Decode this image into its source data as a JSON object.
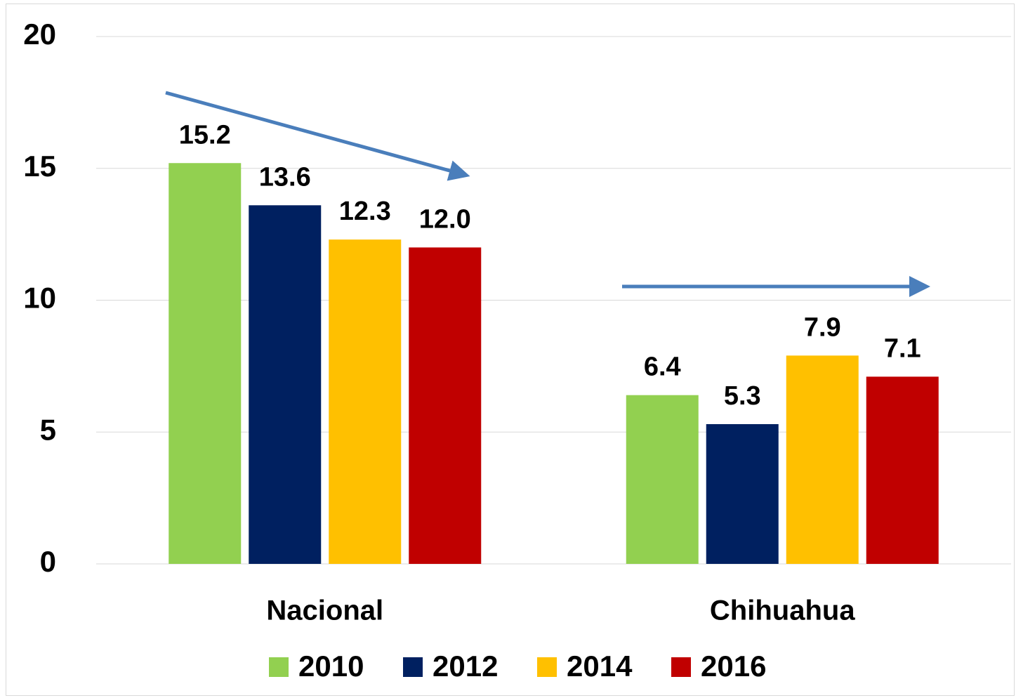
{
  "chart_data": {
    "type": "bar",
    "categories": [
      "Nacional",
      "Chihuahua"
    ],
    "series": [
      {
        "name": "2010",
        "color": "#92d050",
        "values": [
          15.2,
          6.4
        ],
        "value_labels": [
          "15.2",
          "6.4"
        ]
      },
      {
        "name": "2012",
        "color": "#002060",
        "values": [
          13.6,
          5.3
        ],
        "value_labels": [
          "13.6",
          "5.3"
        ]
      },
      {
        "name": "2014",
        "color": "#ffc000",
        "values": [
          12.3,
          7.9
        ],
        "value_labels": [
          "12.3",
          "7.9"
        ]
      },
      {
        "name": "2016",
        "color": "#c00000",
        "values": [
          12.0,
          7.1
        ],
        "value_labels": [
          "12.0",
          "7.1"
        ]
      }
    ],
    "ylim": [
      0,
      20
    ],
    "yticks": [
      0,
      5,
      10,
      15,
      20
    ],
    "grid": true,
    "legend": "bottom"
  }
}
